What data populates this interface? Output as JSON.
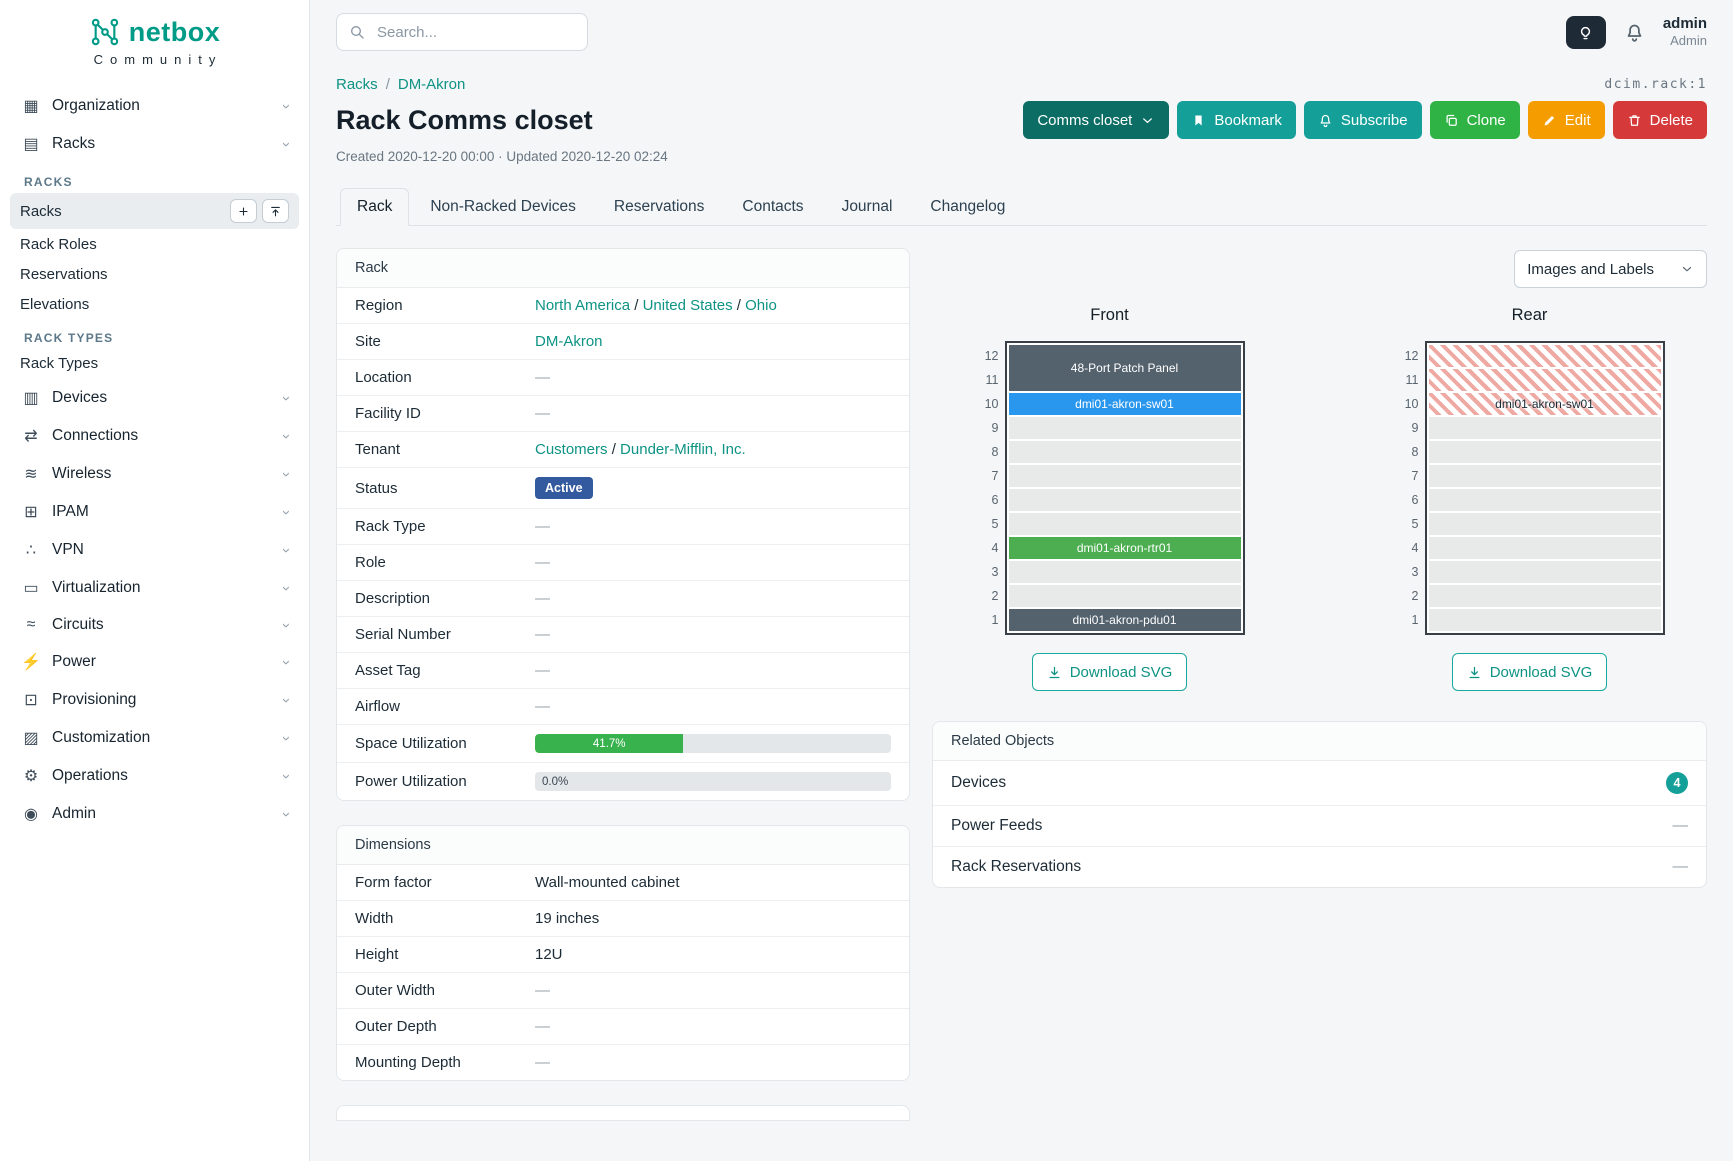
{
  "brand": {
    "name": "netbox",
    "tagline": "Community"
  },
  "topbar": {
    "search_placeholder": "Search...",
    "user": {
      "name": "admin",
      "role": "Admin"
    }
  },
  "sidebar": {
    "items_before": [
      {
        "label": "Organization",
        "icon": "organization"
      },
      {
        "label": "Racks",
        "icon": "racks"
      }
    ],
    "groups": [
      {
        "heading": "RACKS",
        "items": [
          {
            "label": "Racks",
            "active": true
          },
          {
            "label": "Rack Roles"
          },
          {
            "label": "Reservations"
          },
          {
            "label": "Elevations"
          }
        ]
      },
      {
        "heading": "RACK TYPES",
        "items": [
          {
            "label": "Rack Types"
          }
        ]
      }
    ],
    "items_after": [
      {
        "label": "Devices",
        "icon": "devices"
      },
      {
        "label": "Connections",
        "icon": "connections"
      },
      {
        "label": "Wireless",
        "icon": "wireless"
      },
      {
        "label": "IPAM",
        "icon": "ipam"
      },
      {
        "label": "VPN",
        "icon": "vpn"
      },
      {
        "label": "Virtualization",
        "icon": "virtualization"
      },
      {
        "label": "Circuits",
        "icon": "circuits"
      },
      {
        "label": "Power",
        "icon": "power"
      },
      {
        "label": "Provisioning",
        "icon": "provisioning"
      },
      {
        "label": "Customization",
        "icon": "customization"
      },
      {
        "label": "Operations",
        "icon": "operations"
      },
      {
        "label": "Admin",
        "icon": "admin"
      }
    ]
  },
  "page": {
    "breadcrumb": [
      "Racks",
      "DM-Akron"
    ],
    "breadcrumb_separator": "/",
    "object_id": "dcim.rack:1",
    "title": "Rack Comms closet",
    "meta": "Created 2020-12-20 00:00 · Updated 2020-12-20 02:24",
    "actions": [
      {
        "label": "Comms closet",
        "icon": "caret-down",
        "icon_after": true,
        "bg": "#0b6d64"
      },
      {
        "label": "Bookmark",
        "icon": "bookmark",
        "bg": "#14a099"
      },
      {
        "label": "Subscribe",
        "icon": "bell",
        "bg": "#14a099"
      },
      {
        "label": "Clone",
        "icon": "copy",
        "bg": "#2fb344"
      },
      {
        "label": "Edit",
        "icon": "pencil",
        "bg": "#f59c00"
      },
      {
        "label": "Delete",
        "icon": "trash",
        "bg": "#d63939"
      }
    ],
    "tabs": [
      "Rack",
      "Non-Racked Devices",
      "Reservations",
      "Contacts",
      "Journal",
      "Changelog"
    ],
    "active_tab": "Rack"
  },
  "rack_panel": {
    "title": "Rack",
    "rows": [
      {
        "label": "Region",
        "links": [
          "North America",
          "United States",
          "Ohio"
        ]
      },
      {
        "label": "Site",
        "links": [
          "DM-Akron"
        ]
      },
      {
        "label": "Location",
        "value": "—"
      },
      {
        "label": "Facility ID",
        "value": "—"
      },
      {
        "label": "Tenant",
        "links": [
          "Customers",
          "Dunder-Mifflin, Inc."
        ]
      },
      {
        "label": "Status",
        "badge": {
          "text": "Active",
          "bg": "#33599e"
        }
      },
      {
        "label": "Rack Type",
        "value": "—"
      },
      {
        "label": "Role",
        "value": "—"
      },
      {
        "label": "Description",
        "value": "—"
      },
      {
        "label": "Serial Number",
        "value": "—"
      },
      {
        "label": "Asset Tag",
        "value": "—"
      },
      {
        "label": "Airflow",
        "value": "—"
      },
      {
        "label": "Space Utilization",
        "progress": {
          "percent": 41.7,
          "text": "41.7%",
          "color": "#37b24d"
        }
      },
      {
        "label": "Power Utilization",
        "progress": {
          "percent": 0,
          "text": "0.0%",
          "color": "#37b24d"
        }
      }
    ]
  },
  "dimensions_panel": {
    "title": "Dimensions",
    "rows": [
      {
        "label": "Form factor",
        "value": "Wall-mounted cabinet"
      },
      {
        "label": "Width",
        "value": "19 inches"
      },
      {
        "label": "Height",
        "value": "12U"
      },
      {
        "label": "Outer Width",
        "value": "—"
      },
      {
        "label": "Outer Depth",
        "value": "—"
      },
      {
        "label": "Mounting Depth",
        "value": "—"
      }
    ]
  },
  "elevations": {
    "display_toggle": "Images and Labels",
    "download_label": "Download SVG",
    "unit_numbers": [
      12,
      11,
      10,
      9,
      8,
      7,
      6,
      5,
      4,
      3,
      2,
      1
    ],
    "front": {
      "title": "Front",
      "slots": [
        {
          "span": 2,
          "type": "device",
          "label": "48-Port Patch Panel",
          "color": "#54626e"
        },
        {
          "span": 1,
          "type": "device",
          "label": "dmi01-akron-sw01",
          "color": "#2a97ee"
        },
        {
          "span": 1,
          "type": "empty"
        },
        {
          "span": 1,
          "type": "empty"
        },
        {
          "span": 1,
          "type": "empty"
        },
        {
          "span": 1,
          "type": "empty"
        },
        {
          "span": 1,
          "type": "empty"
        },
        {
          "span": 1,
          "type": "device",
          "label": "dmi01-akron-rtr01",
          "color": "#4cae50"
        },
        {
          "span": 1,
          "type": "empty"
        },
        {
          "span": 1,
          "type": "empty"
        },
        {
          "span": 1,
          "type": "device",
          "label": "dmi01-akron-pdu01",
          "color": "#54626e"
        }
      ]
    },
    "rear": {
      "title": "Rear",
      "slots": [
        {
          "span": 1,
          "type": "hatched"
        },
        {
          "span": 1,
          "type": "hatched"
        },
        {
          "span": 1,
          "type": "hatched",
          "label": "dmi01-akron-sw01"
        },
        {
          "span": 1,
          "type": "empty"
        },
        {
          "span": 1,
          "type": "empty"
        },
        {
          "span": 1,
          "type": "empty"
        },
        {
          "span": 1,
          "type": "empty"
        },
        {
          "span": 1,
          "type": "empty"
        },
        {
          "span": 1,
          "type": "empty"
        },
        {
          "span": 1,
          "type": "empty"
        },
        {
          "span": 1,
          "type": "empty"
        },
        {
          "span": 1,
          "type": "empty"
        }
      ]
    }
  },
  "related_objects": {
    "title": "Related Objects",
    "rows": [
      {
        "label": "Devices",
        "count": "4"
      },
      {
        "label": "Power Feeds",
        "value": "—"
      },
      {
        "label": "Rack Reservations",
        "value": "—"
      }
    ]
  }
}
